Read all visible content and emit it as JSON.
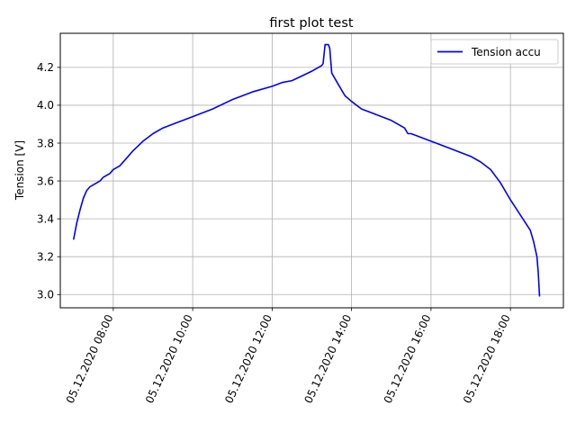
{
  "chart_data": {
    "type": "line",
    "title": "first plot test",
    "xlabel": "",
    "ylabel": "Tension [V]",
    "x_ticks": [
      "05.12.2020 08:00",
      "05.12.2020 10:00",
      "05.12.2020 12:00",
      "05.12.2020 14:00",
      "05.12.2020 16:00",
      "05.12.2020 18:00"
    ],
    "y_ticks": [
      "3.0",
      "3.2",
      "3.4",
      "3.6",
      "3.8",
      "4.0",
      "4.2"
    ],
    "xlim": [
      "05.12.2020 06:40",
      "05.12.2020 19:20"
    ],
    "ylim": [
      2.93,
      4.38
    ],
    "grid": true,
    "legend_position": "top-right",
    "series": [
      {
        "name": "Tension accu",
        "color": "#0000ff",
        "x": [
          "05.12.2020 07:00",
          "05.12.2020 07:05",
          "05.12.2020 07:10",
          "05.12.2020 07:15",
          "05.12.2020 07:20",
          "05.12.2020 07:25",
          "05.12.2020 07:30",
          "05.12.2020 07:35",
          "05.12.2020 07:40",
          "05.12.2020 07:45",
          "05.12.2020 07:50",
          "05.12.2020 07:55",
          "05.12.2020 08:00",
          "05.12.2020 08:05",
          "05.12.2020 08:10",
          "05.12.2020 08:20",
          "05.12.2020 08:30",
          "05.12.2020 08:45",
          "05.12.2020 09:00",
          "05.12.2020 09:15",
          "05.12.2020 09:30",
          "05.12.2020 10:00",
          "05.12.2020 10:30",
          "05.12.2020 11:00",
          "05.12.2020 11:30",
          "05.12.2020 12:00",
          "05.12.2020 12:15",
          "05.12.2020 12:30",
          "05.12.2020 13:00",
          "05.12.2020 13:15",
          "05.12.2020 13:17",
          "05.12.2020 13:20",
          "05.12.2020 13:25",
          "05.12.2020 13:27",
          "05.12.2020 13:30",
          "05.12.2020 13:40",
          "05.12.2020 13:50",
          "05.12.2020 14:00",
          "05.12.2020 14:15",
          "05.12.2020 14:30",
          "05.12.2020 15:00",
          "05.12.2020 15:20",
          "05.12.2020 15:25",
          "05.12.2020 15:30",
          "05.12.2020 16:00",
          "05.12.2020 16:30",
          "05.12.2020 17:00",
          "05.12.2020 17:15",
          "05.12.2020 17:30",
          "05.12.2020 17:45",
          "05.12.2020 18:00",
          "05.12.2020 18:15",
          "05.12.2020 18:30",
          "05.12.2020 18:35",
          "05.12.2020 18:40",
          "05.12.2020 18:42",
          "05.12.2020 18:44"
        ],
        "y": [
          3.29,
          3.38,
          3.45,
          3.51,
          3.55,
          3.57,
          3.58,
          3.59,
          3.6,
          3.62,
          3.63,
          3.64,
          3.66,
          3.67,
          3.68,
          3.72,
          3.76,
          3.81,
          3.85,
          3.88,
          3.9,
          3.94,
          3.98,
          4.03,
          4.07,
          4.1,
          4.12,
          4.13,
          4.18,
          4.21,
          4.22,
          4.32,
          4.32,
          4.3,
          4.17,
          4.11,
          4.05,
          4.02,
          3.98,
          3.96,
          3.92,
          3.88,
          3.85,
          3.85,
          3.81,
          3.77,
          3.73,
          3.7,
          3.66,
          3.59,
          3.5,
          3.42,
          3.34,
          3.28,
          3.2,
          3.12,
          2.99
        ]
      }
    ]
  }
}
